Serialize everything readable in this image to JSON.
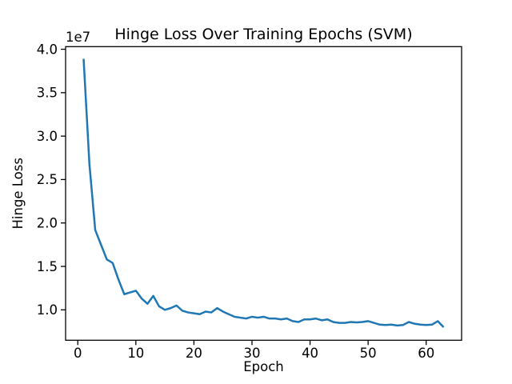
{
  "chart_data": {
    "type": "line",
    "title": "Hinge Loss Over Training Epochs (SVM)",
    "xlabel": "Epoch",
    "ylabel": "Hinge Loss",
    "y_offset_label": "1e7",
    "y_unit_multiplier": 10000000,
    "line_color": "#1f77b4",
    "background_color": "#ffffff",
    "grid": false,
    "legend": false,
    "xlim": [
      -2.1,
      66.1
    ],
    "ylim": [
      0.65,
      4.03
    ],
    "xticks": [
      {
        "label": "0",
        "value": 0
      },
      {
        "label": "10",
        "value": 10
      },
      {
        "label": "20",
        "value": 20
      },
      {
        "label": "30",
        "value": 30
      },
      {
        "label": "40",
        "value": 40
      },
      {
        "label": "50",
        "value": 50
      },
      {
        "label": "60",
        "value": 60
      }
    ],
    "yticks": [
      {
        "label": "1.0",
        "value": 1.0
      },
      {
        "label": "1.5",
        "value": 1.5
      },
      {
        "label": "2.0",
        "value": 2.0
      },
      {
        "label": "2.5",
        "value": 2.5
      },
      {
        "label": "3.0",
        "value": 3.0
      },
      {
        "label": "3.5",
        "value": 3.5
      },
      {
        "label": "4.0",
        "value": 4.0
      }
    ],
    "series_name": "Hinge Loss (units of 1e7)",
    "x": [
      1,
      2,
      3,
      4,
      5,
      6,
      7,
      8,
      9,
      10,
      11,
      12,
      13,
      14,
      15,
      16,
      17,
      18,
      19,
      20,
      21,
      22,
      23,
      24,
      25,
      26,
      27,
      28,
      29,
      30,
      31,
      32,
      33,
      34,
      35,
      36,
      37,
      38,
      39,
      40,
      41,
      42,
      43,
      44,
      45,
      46,
      47,
      48,
      49,
      50,
      51,
      52,
      53,
      54,
      55,
      56,
      57,
      58,
      59,
      60,
      61,
      62,
      63
    ],
    "values": [
      3.89,
      2.68,
      1.92,
      1.75,
      1.58,
      1.54,
      1.35,
      1.18,
      1.2,
      1.22,
      1.13,
      1.07,
      1.16,
      1.04,
      1.0,
      1.02,
      1.05,
      0.99,
      0.97,
      0.96,
      0.95,
      0.98,
      0.97,
      1.02,
      0.98,
      0.95,
      0.92,
      0.91,
      0.9,
      0.92,
      0.91,
      0.92,
      0.9,
      0.9,
      0.89,
      0.9,
      0.87,
      0.86,
      0.89,
      0.89,
      0.9,
      0.88,
      0.89,
      0.86,
      0.85,
      0.85,
      0.86,
      0.855,
      0.86,
      0.87,
      0.85,
      0.83,
      0.825,
      0.83,
      0.82,
      0.825,
      0.86,
      0.84,
      0.83,
      0.825,
      0.83,
      0.87,
      0.8
    ]
  }
}
